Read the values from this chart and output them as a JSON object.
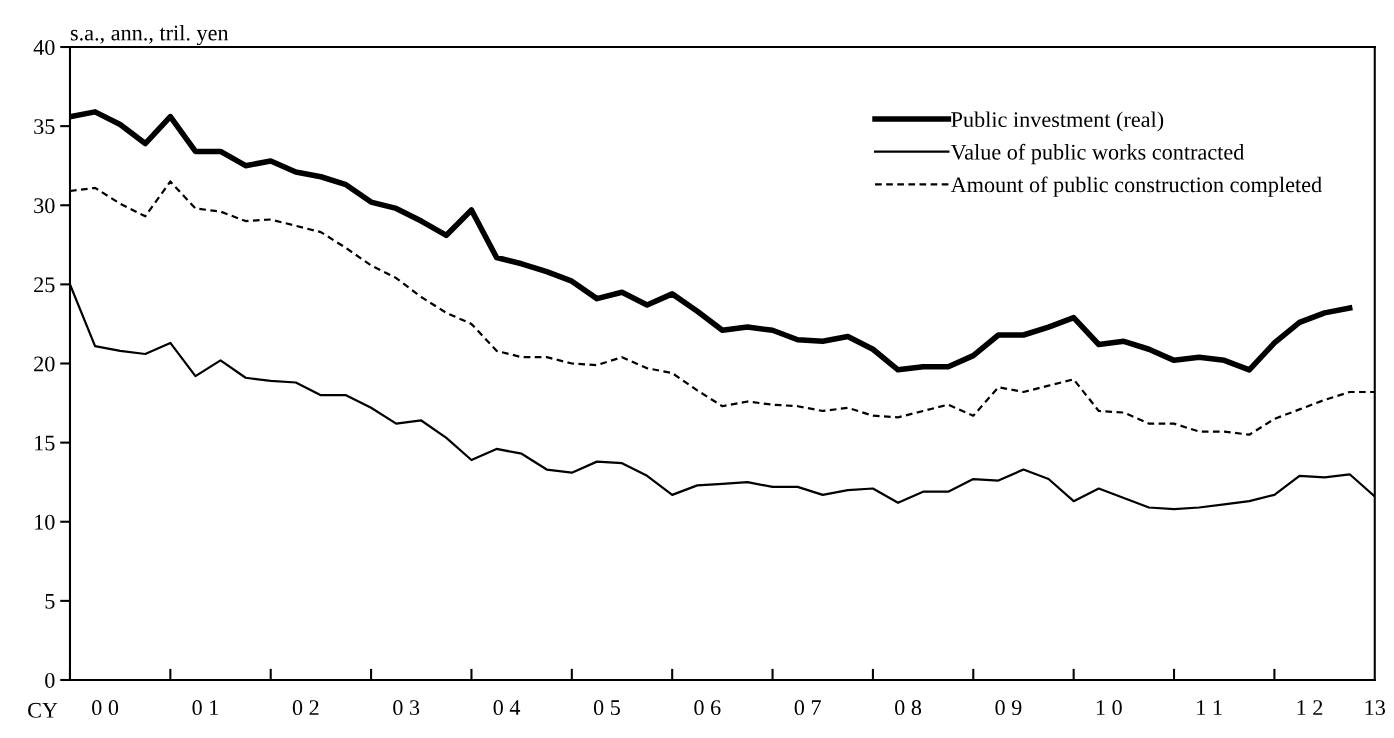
{
  "chart_data": {
    "type": "line",
    "ylabel": "s.a., ann., tril. yen",
    "xlabel": "CY",
    "categories": [
      null,
      "0 0",
      null,
      null,
      null,
      "0 1",
      null,
      null,
      null,
      "0 2",
      null,
      null,
      null,
      "0 3",
      null,
      null,
      null,
      "0 4",
      null,
      null,
      null,
      "0 5",
      null,
      null,
      null,
      "0 6",
      null,
      null,
      null,
      "0 7",
      null,
      null,
      null,
      "0 8",
      null,
      null,
      null,
      "0 9",
      null,
      null,
      null,
      "1 0",
      null,
      null,
      null,
      "1 1",
      null,
      null,
      null,
      "1 2",
      null,
      null,
      "13"
    ],
    "series": [
      {
        "name": "Public investment (real)",
        "color": "#000000",
        "line_style": "solid",
        "values": [
          35.6,
          35.9,
          35.1,
          33.9,
          35.6,
          33.4,
          33.4,
          32.5,
          32.8,
          32.1,
          31.8,
          31.3,
          30.2,
          29.8,
          29.0,
          28.1,
          29.7,
          26.7,
          26.3,
          25.8,
          25.2,
          24.1,
          24.5,
          23.7,
          24.4,
          23.3,
          22.1,
          22.3,
          22.1,
          21.5,
          21.4,
          21.7,
          20.9,
          19.6,
          19.8,
          19.8,
          20.5,
          21.8,
          21.8,
          22.3,
          22.9,
          21.2,
          21.4,
          20.9,
          20.2,
          20.4,
          20.2,
          19.6,
          21.3,
          22.6,
          23.2,
          23.5,
          null
        ]
      },
      {
        "name": "Value of public works contracted",
        "color": "#000000",
        "line_style": "solid",
        "values": [
          25.0,
          21.1,
          20.8,
          20.6,
          21.3,
          19.2,
          20.2,
          19.1,
          18.9,
          18.8,
          18.0,
          18.0,
          17.2,
          16.2,
          16.4,
          15.3,
          13.9,
          14.6,
          14.3,
          13.3,
          13.1,
          13.8,
          13.7,
          12.9,
          11.7,
          12.3,
          12.4,
          12.5,
          12.2,
          12.2,
          11.7,
          12.0,
          12.1,
          11.2,
          11.9,
          11.9,
          12.7,
          12.6,
          13.3,
          12.7,
          11.3,
          12.1,
          11.5,
          10.9,
          10.8,
          10.9,
          11.1,
          11.3,
          11.7,
          12.9,
          12.8,
          13.0,
          11.6
        ]
      },
      {
        "name": "Amount of public construction completed",
        "color": "#000000",
        "line_style": "dashed",
        "values": [
          30.9,
          31.1,
          30.1,
          29.3,
          31.5,
          29.8,
          29.6,
          29.0,
          29.1,
          28.7,
          28.3,
          27.3,
          26.2,
          25.4,
          24.2,
          23.2,
          22.5,
          20.8,
          20.4,
          20.4,
          20.0,
          19.9,
          20.4,
          19.7,
          19.4,
          18.3,
          17.3,
          17.6,
          17.4,
          17.3,
          17.0,
          17.2,
          16.7,
          16.6,
          17.0,
          17.4,
          16.7,
          18.5,
          18.2,
          18.6,
          19.0,
          17.0,
          16.9,
          16.2,
          16.2,
          15.7,
          15.7,
          15.5,
          16.5,
          17.1,
          17.7,
          18.2,
          18.2
        ]
      }
    ],
    "ylim": [
      0,
      40
    ],
    "yticks": [
      0,
      5,
      10,
      15,
      20,
      25,
      30,
      35,
      40
    ],
    "grid": false,
    "legend": "top right",
    "marker": "none"
  }
}
